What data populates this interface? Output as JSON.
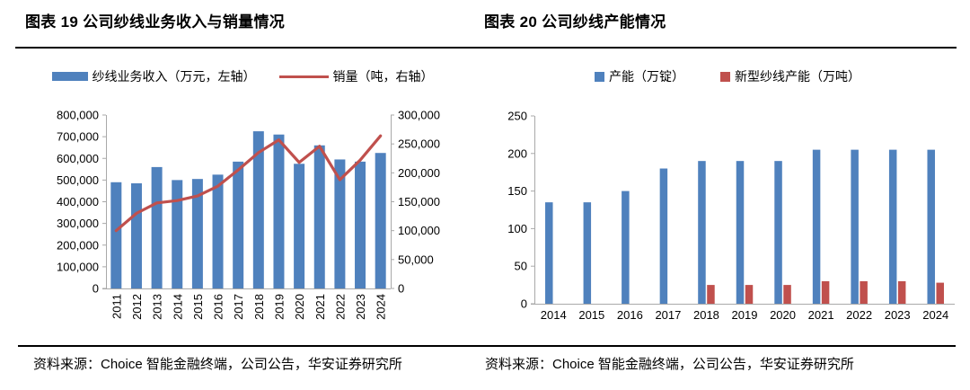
{
  "footers": {
    "left": "资料来源：Choice 智能金融终端，公司公告，华安证券研究所",
    "right": "资料来源：Choice 智能金融终端，公司公告，华安证券研究所"
  },
  "chart_data": [
    {
      "type": "bar+line",
      "title": "图表 19 公司纱线业务收入与销量情况",
      "legend_position": "top",
      "x_label_rotation": -90,
      "grid": "off",
      "categories": [
        "2011",
        "2012",
        "2013",
        "2014",
        "2015",
        "2016",
        "2017",
        "2018",
        "2019",
        "2020",
        "2021",
        "2022",
        "2023",
        "2024"
      ],
      "series": [
        {
          "key": "revenue",
          "name": "纱线业务收入（万元，左轴）",
          "type": "bar",
          "axis": "left",
          "color": "#4F81BD",
          "values": [
            490000,
            485000,
            560000,
            500000,
            505000,
            525000,
            585000,
            725000,
            710000,
            575000,
            660000,
            595000,
            585000,
            625000
          ]
        },
        {
          "key": "sales-volume",
          "name": "销量（吨，右轴）",
          "type": "line",
          "axis": "right",
          "color": "#C0504D",
          "values": [
            100000,
            130000,
            148000,
            152000,
            160000,
            177000,
            205000,
            235000,
            257000,
            218000,
            246000,
            188000,
            222000,
            264000
          ]
        }
      ],
      "left_axis": {
        "min": 0,
        "max": 800000,
        "step": 100000
      },
      "right_axis": {
        "min": 0,
        "max": 300000,
        "step": 50000
      }
    },
    {
      "type": "bar",
      "title": "图表 20  公司纱线产能情况",
      "legend_position": "top",
      "grid": "off",
      "categories": [
        "2014",
        "2015",
        "2016",
        "2017",
        "2018",
        "2019",
        "2020",
        "2021",
        "2022",
        "2023",
        "2024"
      ],
      "series": [
        {
          "key": "capacity",
          "name": "产能（万锭）",
          "type": "bar",
          "axis": "left",
          "color": "#4F81BD",
          "values": [
            135,
            135,
            150,
            180,
            190,
            190,
            190,
            205,
            205,
            205,
            205
          ]
        },
        {
          "key": "new-yarn-capacity",
          "name": "新型纱线产能（万吨）",
          "type": "bar",
          "axis": "left",
          "color": "#C0504D",
          "values": [
            null,
            null,
            null,
            null,
            25,
            25,
            25,
            30,
            30,
            30,
            28
          ]
        }
      ],
      "left_axis": {
        "min": 0,
        "max": 250,
        "step": 50
      }
    }
  ]
}
